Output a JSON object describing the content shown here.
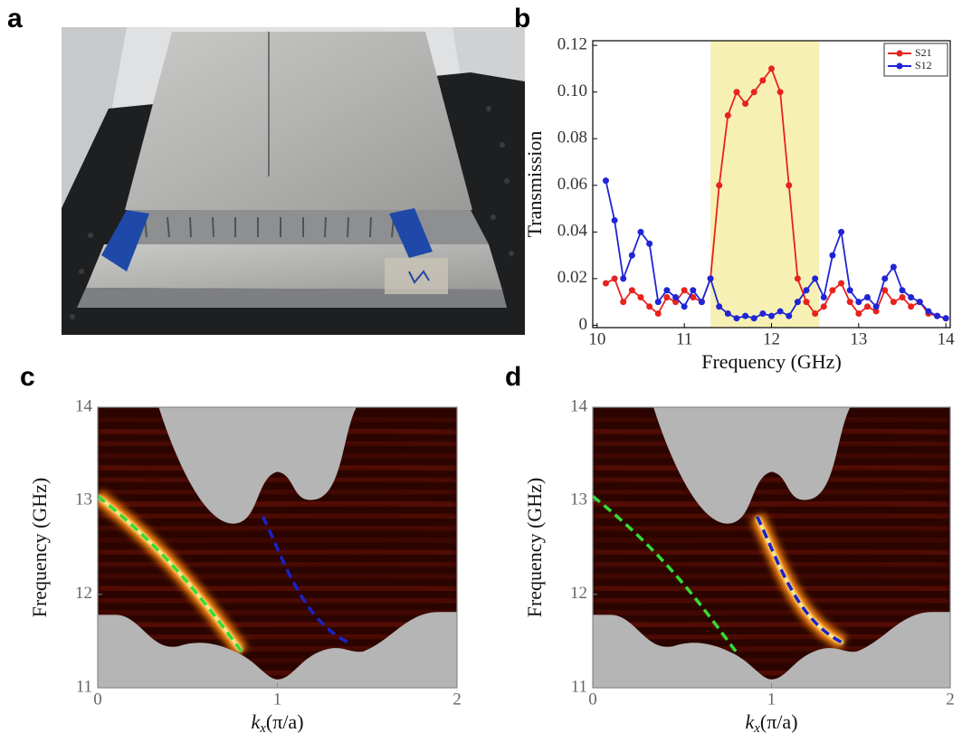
{
  "panel_labels": [
    "a",
    "b",
    "c",
    "d"
  ],
  "chart_data": [
    {
      "type": "line",
      "xlabel": "Frequency (GHz)",
      "ylabel": "Transmission",
      "xlim": [
        9.95,
        14.05
      ],
      "xticks": [
        10,
        11,
        12,
        13,
        14
      ],
      "ylim": [
        -0.001,
        0.122
      ],
      "yticks": [
        0,
        0.02,
        0.04,
        0.06,
        0.08,
        {
          "value": 0.1,
          "label": "0.10"
        },
        0.12
      ],
      "highlight": [
        11.3,
        12.55
      ],
      "highlight_color": "#f7f0b4",
      "legend": "top-right",
      "grid": false,
      "x": [
        10.1,
        10.2,
        10.3,
        10.4,
        10.5,
        10.6,
        10.7,
        10.8,
        10.9,
        11.0,
        11.1,
        11.2,
        11.3,
        11.4,
        11.5,
        11.6,
        11.7,
        11.8,
        11.9,
        12.0,
        12.1,
        12.2,
        12.3,
        12.4,
        12.5,
        12.6,
        12.7,
        12.8,
        12.9,
        13.0,
        13.1,
        13.2,
        13.3,
        13.4,
        13.5,
        13.6,
        13.7,
        13.8,
        13.9,
        14.0
      ],
      "series": [
        {
          "name": "S21",
          "color": "#e8221d",
          "values": [
            0.018,
            0.02,
            0.01,
            0.015,
            0.012,
            0.008,
            0.005,
            0.012,
            0.01,
            0.015,
            0.012,
            0.01,
            0.02,
            0.06,
            0.09,
            0.1,
            0.095,
            0.1,
            0.105,
            0.11,
            0.1,
            0.06,
            0.02,
            0.01,
            0.005,
            0.008,
            0.015,
            0.018,
            0.01,
            0.005,
            0.008,
            0.006,
            0.015,
            0.01,
            0.012,
            0.008,
            0.01,
            0.005,
            0.004,
            0.003
          ]
        },
        {
          "name": "S12",
          "color": "#1f24d6",
          "values": [
            0.062,
            0.045,
            0.02,
            0.03,
            0.04,
            0.035,
            0.01,
            0.015,
            0.012,
            0.008,
            0.015,
            0.01,
            0.02,
            0.008,
            0.005,
            0.003,
            0.004,
            0.003,
            0.005,
            0.004,
            0.006,
            0.004,
            0.01,
            0.015,
            0.02,
            0.012,
            0.03,
            0.04,
            0.015,
            0.01,
            0.012,
            0.008,
            0.02,
            0.025,
            0.015,
            0.012,
            0.01,
            0.006,
            0.004,
            0.003
          ]
        }
      ]
    },
    {
      "type": "heatmap",
      "xlabel": {
        "symbol": "k",
        "sub": "x",
        "rest": "(π/a)"
      },
      "ylabel": "Frequency (GHz)",
      "xlim": [
        0,
        2
      ],
      "xticks": [
        0,
        1,
        2
      ],
      "ylim": [
        11,
        14
      ],
      "yticks": [
        11,
        12,
        13,
        14
      ]
    },
    {
      "type": "heatmap",
      "xlabel": {
        "symbol": "k",
        "sub": "x",
        "rest": "(π/a)"
      },
      "ylabel": "Frequency (GHz)",
      "xlim": [
        0,
        2
      ],
      "xticks": [
        0,
        1,
        2
      ],
      "ylim": [
        11,
        14
      ],
      "yticks": [
        11,
        12,
        13,
        14
      ]
    }
  ]
}
